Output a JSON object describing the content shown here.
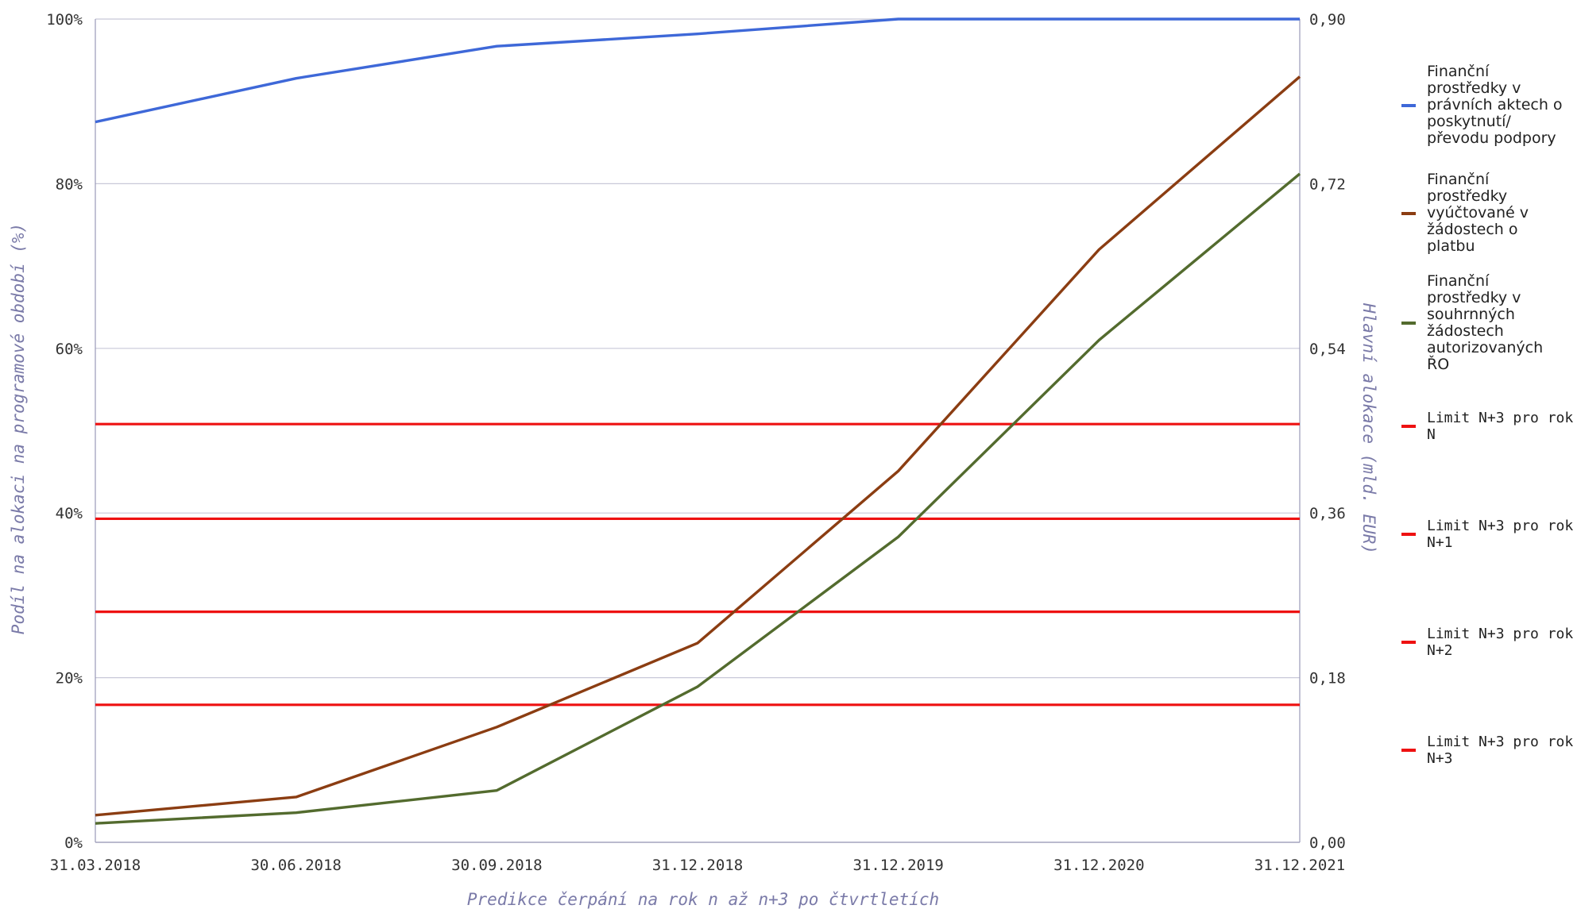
{
  "chart_data": {
    "type": "line",
    "categories": [
      "31.03.2018",
      "30.06.2018",
      "30.09.2018",
      "31.12.2018",
      "31.12.2019",
      "31.12.2020",
      "31.12.2021"
    ],
    "xlabel": "Predikce čerpání na rok n až n+3 po čtvrtletích",
    "ylabel": "Podíl na alokaci na programové období (%)",
    "y2label": "Hlavní alokace (mld. EUR)",
    "ylim": [
      0,
      100
    ],
    "y2lim": [
      0,
      0.9
    ],
    "yticks": [
      "0%",
      "20%",
      "40%",
      "60%",
      "80%",
      "100%"
    ],
    "y2ticks": [
      "0,00",
      "0,18",
      "0,36",
      "0,54",
      "0,72",
      "0,90"
    ],
    "grid": true,
    "legend_position": "right",
    "series": [
      {
        "name": "Finanční prostředky v právních aktech o poskytnutí/ převodu podpory",
        "color": "#3e68d8",
        "values": [
          87.5,
          92.8,
          96.7,
          98.2,
          100,
          100,
          100
        ]
      },
      {
        "name": "Finanční prostředky vyúčtované v žádostech o platbu",
        "color": "#8b3d12",
        "values": [
          3.3,
          5.5,
          14,
          24.2,
          45.1,
          72,
          93
        ]
      },
      {
        "name": "Finanční prostředky v souhrnných žádostech autorizovaných ŘO",
        "color": "#536b2e",
        "values": [
          2.3,
          3.6,
          6.3,
          18.9,
          37.1,
          61,
          81.2
        ]
      }
    ],
    "limits": [
      {
        "name": "Limit N+3 pro rok N",
        "color": "#ee1111",
        "value": 50.8
      },
      {
        "name": "Limit N+3 pro rok N+1",
        "color": "#ee1111",
        "value": 39.3
      },
      {
        "name": "Limit N+3 pro rok N+2",
        "color": "#ee1111",
        "value": 28
      },
      {
        "name": "Limit N+3 pro rok N+3",
        "color": "#ee1111",
        "value": 16.7
      }
    ]
  },
  "legend": [
    {
      "text": "Finanční\nprostředky v\nprávních aktech o\nposkytnutí/\npřevodu podpory",
      "color": "#3e68d8",
      "mono": false
    },
    {
      "text": "Finanční\nprostředky\nvyúčtované v\nžádostech o\nplatbu",
      "color": "#8b3d12",
      "mono": false
    },
    {
      "text": "Finanční\nprostředky v\nsouhrnných\nžádostech\nautorizovaných\nŘO",
      "color": "#536b2e",
      "mono": false
    },
    {
      "text": "Limit N+3 pro rok\nN",
      "color": "#ee1111",
      "mono": true
    },
    {
      "text": "Limit N+3 pro rok\nN+1",
      "color": "#ee1111",
      "mono": true
    },
    {
      "text": "Limit N+3 pro rok\nN+2",
      "color": "#ee1111",
      "mono": true
    },
    {
      "text": "Limit N+3 pro rok\nN+3",
      "color": "#ee1111",
      "mono": true
    }
  ]
}
